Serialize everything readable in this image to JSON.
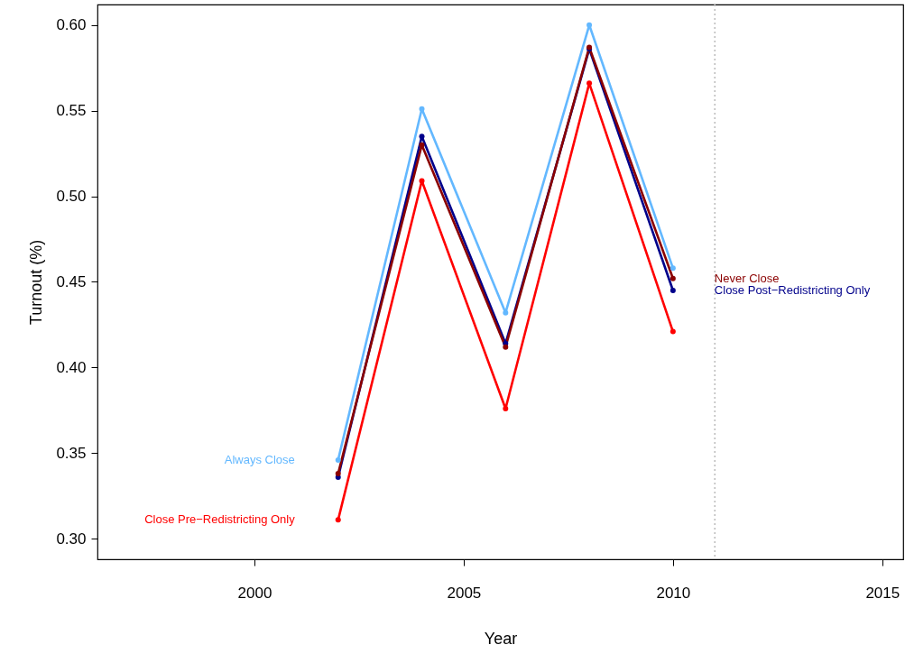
{
  "chart_data": {
    "type": "line",
    "xlabel": "Year",
    "ylabel": "Turnout (%)",
    "x": [
      2002,
      2004,
      2006,
      2008,
      2010
    ],
    "series": [
      {
        "name": "Always Close",
        "color": "#63b8ff",
        "values": [
          0.346,
          0.551,
          0.432,
          0.6,
          0.458
        ]
      },
      {
        "name": "Close Pre−Redistricting Only",
        "color": "#ff0000",
        "values": [
          0.311,
          0.509,
          0.376,
          0.566,
          0.421
        ]
      },
      {
        "name": "Close Post−Redistricting Only",
        "color": "#00008b",
        "values": [
          0.336,
          0.535,
          0.414,
          0.586,
          0.445
        ]
      },
      {
        "name": "Never Close",
        "color": "#8b0000",
        "values": [
          0.338,
          0.53,
          0.412,
          0.587,
          0.452
        ]
      }
    ],
    "xlim": [
      1996.25,
      2015.5
    ],
    "xticks": [
      2000,
      2005,
      2010,
      2015
    ],
    "ylim": [
      0.288,
      0.612
    ],
    "yticks": [
      {
        "value": 0.3,
        "label": "0.30"
      },
      0.35,
      {
        "value": 0.4,
        "label": "0.40"
      },
      0.45,
      {
        "value": 0.5,
        "label": "0.50"
      },
      0.55,
      {
        "value": 0.6,
        "label": "0.60"
      }
    ],
    "ref_lines": [
      {
        "axis": "x",
        "value": 2011,
        "color": "#bebebe",
        "line_style": "dotted"
      }
    ],
    "marker": "circle",
    "line_style": "solid",
    "grid": false
  }
}
